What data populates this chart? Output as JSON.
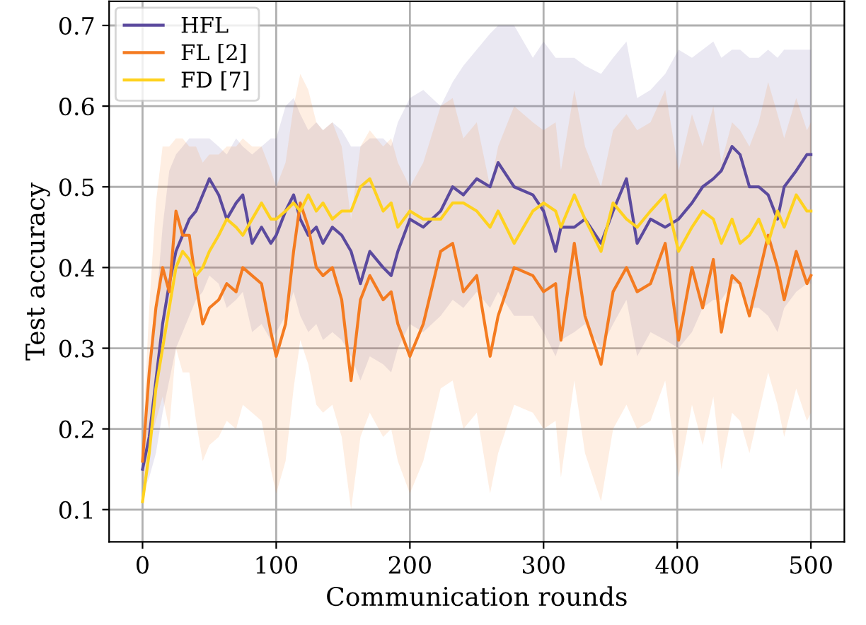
{
  "chart_data": {
    "type": "line",
    "xlabel": "Communication rounds",
    "ylabel": "Test accuracy",
    "x": [
      0,
      5,
      10,
      15,
      20,
      25,
      30,
      35,
      40,
      45,
      50,
      57,
      63,
      70,
      75,
      82,
      89,
      96,
      100,
      107,
      113,
      118,
      124,
      130,
      135,
      142,
      149,
      156,
      163,
      170,
      180,
      186,
      191,
      200,
      210,
      223,
      232,
      240,
      250,
      260,
      266,
      278,
      292,
      300,
      309,
      313,
      323,
      331,
      343,
      352,
      362,
      370,
      380,
      391,
      401,
      411,
      419,
      427,
      433,
      441,
      447,
      454,
      461,
      468,
      475,
      480,
      489,
      497,
      500
    ],
    "series": [
      {
        "name": "HFL",
        "color": "#5b4a9e",
        "values": [
          0.15,
          0.19,
          0.26,
          0.33,
          0.38,
          0.42,
          0.44,
          0.46,
          0.47,
          0.49,
          0.51,
          0.49,
          0.46,
          0.48,
          0.49,
          0.43,
          0.45,
          0.43,
          0.44,
          0.47,
          0.49,
          0.46,
          0.44,
          0.45,
          0.43,
          0.45,
          0.44,
          0.42,
          0.38,
          0.42,
          0.4,
          0.39,
          0.42,
          0.46,
          0.45,
          0.47,
          0.5,
          0.49,
          0.51,
          0.5,
          0.53,
          0.5,
          0.49,
          0.47,
          0.42,
          0.45,
          0.45,
          0.46,
          0.43,
          0.47,
          0.51,
          0.43,
          0.46,
          0.45,
          0.46,
          0.48,
          0.5,
          0.51,
          0.52,
          0.55,
          0.54,
          0.5,
          0.5,
          0.49,
          0.46,
          0.5,
          0.52,
          0.54,
          0.54
        ],
        "upper": [
          0.17,
          0.25,
          0.35,
          0.45,
          0.52,
          0.54,
          0.55,
          0.56,
          0.56,
          0.56,
          0.56,
          0.55,
          0.54,
          0.56,
          0.55,
          0.54,
          0.55,
          0.56,
          0.56,
          0.6,
          0.61,
          0.59,
          0.57,
          0.58,
          0.57,
          0.58,
          0.57,
          0.55,
          0.55,
          0.56,
          0.56,
          0.55,
          0.58,
          0.61,
          0.62,
          0.6,
          0.63,
          0.65,
          0.67,
          0.69,
          0.7,
          0.7,
          0.66,
          0.68,
          0.66,
          0.66,
          0.66,
          0.65,
          0.64,
          0.66,
          0.68,
          0.61,
          0.62,
          0.64,
          0.67,
          0.66,
          0.67,
          0.68,
          0.66,
          0.67,
          0.67,
          0.66,
          0.66,
          0.67,
          0.66,
          0.67,
          0.67,
          0.67,
          0.67
        ],
        "lower": [
          0.12,
          0.14,
          0.17,
          0.22,
          0.26,
          0.3,
          0.32,
          0.34,
          0.36,
          0.37,
          0.39,
          0.38,
          0.35,
          0.36,
          0.37,
          0.32,
          0.33,
          0.31,
          0.32,
          0.34,
          0.37,
          0.34,
          0.32,
          0.33,
          0.31,
          0.32,
          0.31,
          0.29,
          0.26,
          0.29,
          0.28,
          0.27,
          0.3,
          0.33,
          0.32,
          0.34,
          0.36,
          0.35,
          0.37,
          0.35,
          0.37,
          0.34,
          0.34,
          0.32,
          0.29,
          0.31,
          0.32,
          0.33,
          0.3,
          0.33,
          0.36,
          0.29,
          0.32,
          0.31,
          0.3,
          0.32,
          0.35,
          0.36,
          0.36,
          0.38,
          0.38,
          0.35,
          0.35,
          0.34,
          0.32,
          0.35,
          0.37,
          0.38,
          0.38
        ]
      },
      {
        "name": "FL [2]",
        "color": "#f47b20",
        "values": [
          0.16,
          0.27,
          0.35,
          0.4,
          0.37,
          0.47,
          0.44,
          0.44,
          0.38,
          0.33,
          0.35,
          0.36,
          0.38,
          0.37,
          0.4,
          0.39,
          0.38,
          0.32,
          0.29,
          0.33,
          0.42,
          0.48,
          0.45,
          0.4,
          0.39,
          0.4,
          0.36,
          0.26,
          0.36,
          0.39,
          0.36,
          0.37,
          0.33,
          0.29,
          0.33,
          0.42,
          0.43,
          0.37,
          0.39,
          0.29,
          0.34,
          0.4,
          0.39,
          0.37,
          0.38,
          0.31,
          0.43,
          0.34,
          0.28,
          0.37,
          0.4,
          0.37,
          0.38,
          0.43,
          0.31,
          0.4,
          0.35,
          0.41,
          0.32,
          0.39,
          0.38,
          0.34,
          0.39,
          0.44,
          0.4,
          0.36,
          0.42,
          0.38,
          0.39
        ],
        "upper": [
          0.18,
          0.35,
          0.48,
          0.55,
          0.55,
          0.56,
          0.56,
          0.55,
          0.55,
          0.53,
          0.54,
          0.54,
          0.55,
          0.55,
          0.56,
          0.55,
          0.55,
          0.52,
          0.5,
          0.53,
          0.6,
          0.64,
          0.62,
          0.58,
          0.57,
          0.58,
          0.55,
          0.46,
          0.55,
          0.57,
          0.55,
          0.56,
          0.53,
          0.5,
          0.53,
          0.6,
          0.61,
          0.56,
          0.58,
          0.5,
          0.55,
          0.6,
          0.58,
          0.57,
          0.58,
          0.52,
          0.62,
          0.55,
          0.5,
          0.57,
          0.59,
          0.57,
          0.58,
          0.62,
          0.52,
          0.59,
          0.55,
          0.6,
          0.53,
          0.58,
          0.57,
          0.55,
          0.58,
          0.63,
          0.59,
          0.56,
          0.61,
          0.57,
          0.58
        ],
        "lower": [
          0.13,
          0.18,
          0.21,
          0.24,
          0.2,
          0.3,
          0.27,
          0.27,
          0.21,
          0.16,
          0.18,
          0.19,
          0.21,
          0.2,
          0.23,
          0.22,
          0.21,
          0.15,
          0.12,
          0.16,
          0.25,
          0.31,
          0.28,
          0.23,
          0.22,
          0.23,
          0.19,
          0.1,
          0.19,
          0.22,
          0.19,
          0.2,
          0.16,
          0.12,
          0.16,
          0.25,
          0.26,
          0.2,
          0.22,
          0.12,
          0.17,
          0.23,
          0.22,
          0.2,
          0.21,
          0.14,
          0.26,
          0.17,
          0.11,
          0.2,
          0.23,
          0.2,
          0.21,
          0.26,
          0.14,
          0.23,
          0.18,
          0.24,
          0.15,
          0.22,
          0.21,
          0.17,
          0.22,
          0.27,
          0.23,
          0.19,
          0.25,
          0.21,
          0.22
        ]
      },
      {
        "name": "FD [7]",
        "color": "#ffd21f",
        "values": [
          0.11,
          0.17,
          0.25,
          0.3,
          0.35,
          0.4,
          0.42,
          0.41,
          0.39,
          0.4,
          0.42,
          0.44,
          0.46,
          0.45,
          0.44,
          0.46,
          0.48,
          0.46,
          0.46,
          0.47,
          0.48,
          0.47,
          0.49,
          0.47,
          0.48,
          0.46,
          0.47,
          0.47,
          0.5,
          0.51,
          0.47,
          0.48,
          0.45,
          0.47,
          0.46,
          0.46,
          0.48,
          0.48,
          0.47,
          0.45,
          0.47,
          0.43,
          0.47,
          0.48,
          0.47,
          0.45,
          0.49,
          0.46,
          0.42,
          0.48,
          0.46,
          0.45,
          0.47,
          0.49,
          0.42,
          0.45,
          0.47,
          0.46,
          0.43,
          0.46,
          0.43,
          0.44,
          0.46,
          0.43,
          0.47,
          0.45,
          0.49,
          0.47,
          0.47
        ]
      }
    ],
    "xlim": [
      -25,
      525
    ],
    "ylim": [
      0.06,
      0.73
    ],
    "xticks": [
      0,
      100,
      200,
      300,
      400,
      500
    ],
    "yticks": [
      0.1,
      0.2,
      0.3,
      0.4,
      0.5,
      0.6,
      0.7
    ],
    "grid": true,
    "legend": "top left",
    "line_style": "solid",
    "marker": "none"
  }
}
